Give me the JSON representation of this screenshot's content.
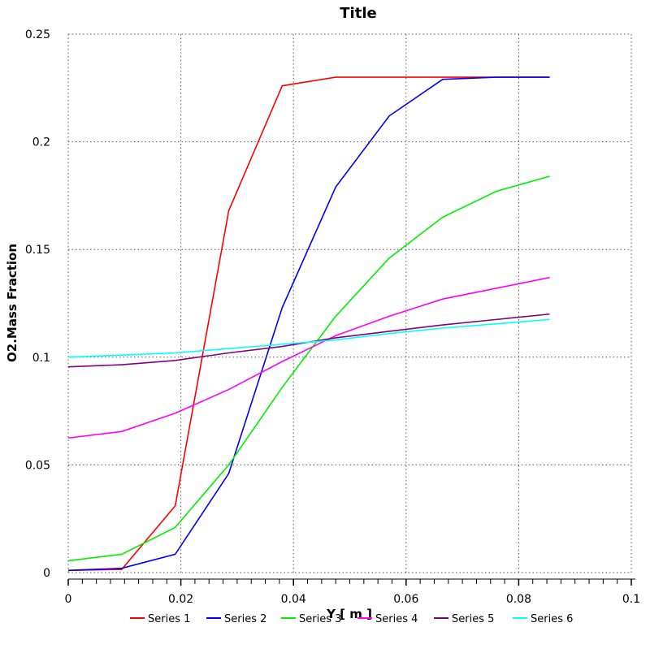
{
  "chart_data": {
    "type": "line",
    "title": "Title",
    "xlabel": "Y [ m ]",
    "ylabel": "O2.Mass Fraction",
    "xlim": [
      0,
      0.1
    ],
    "ylim": [
      0,
      0.25
    ],
    "xticks": [
      "0",
      "0.02",
      "0.04",
      "0.06",
      "0.08",
      "0.1"
    ],
    "yticks": [
      "0",
      "0.05",
      "0.1",
      "0.15",
      "0.2",
      "0.25"
    ],
    "grid": true,
    "legend_position": "bottom",
    "x": [
      0,
      0.0095,
      0.019,
      0.0285,
      0.038,
      0.0475,
      0.057,
      0.0665,
      0.076,
      0.0855
    ],
    "series": [
      {
        "name": "Series 1",
        "color": "#ff0000",
        "values": [
          0.001,
          0.0015,
          0.031,
          0.168,
          0.226,
          0.23,
          0.23,
          0.23,
          0.23,
          0.23
        ]
      },
      {
        "name": "Series 2",
        "color": "#0000ff",
        "values": [
          0.001,
          0.002,
          0.0085,
          0.046,
          0.123,
          0.179,
          0.212,
          0.229,
          0.23,
          0.23
        ]
      },
      {
        "name": "Series 3",
        "color": "#00ee00",
        "values": [
          0.0055,
          0.0085,
          0.021,
          0.05,
          0.086,
          0.119,
          0.146,
          0.165,
          0.177,
          0.184
        ]
      },
      {
        "name": "Series 4",
        "color": "#ff00ff",
        "values": [
          0.0625,
          0.0655,
          0.074,
          0.085,
          0.098,
          0.11,
          0.119,
          0.127,
          0.132,
          0.137
        ]
      },
      {
        "name": "Series 5",
        "color": "#800080",
        "values": [
          0.0955,
          0.0965,
          0.0985,
          0.102,
          0.105,
          0.109,
          0.112,
          0.115,
          0.1175,
          0.12
        ]
      },
      {
        "name": "Series 6",
        "color": "#00ffff",
        "values": [
          0.1,
          0.101,
          0.102,
          0.104,
          0.106,
          0.108,
          0.111,
          0.1135,
          0.1155,
          0.1175
        ]
      }
    ]
  }
}
